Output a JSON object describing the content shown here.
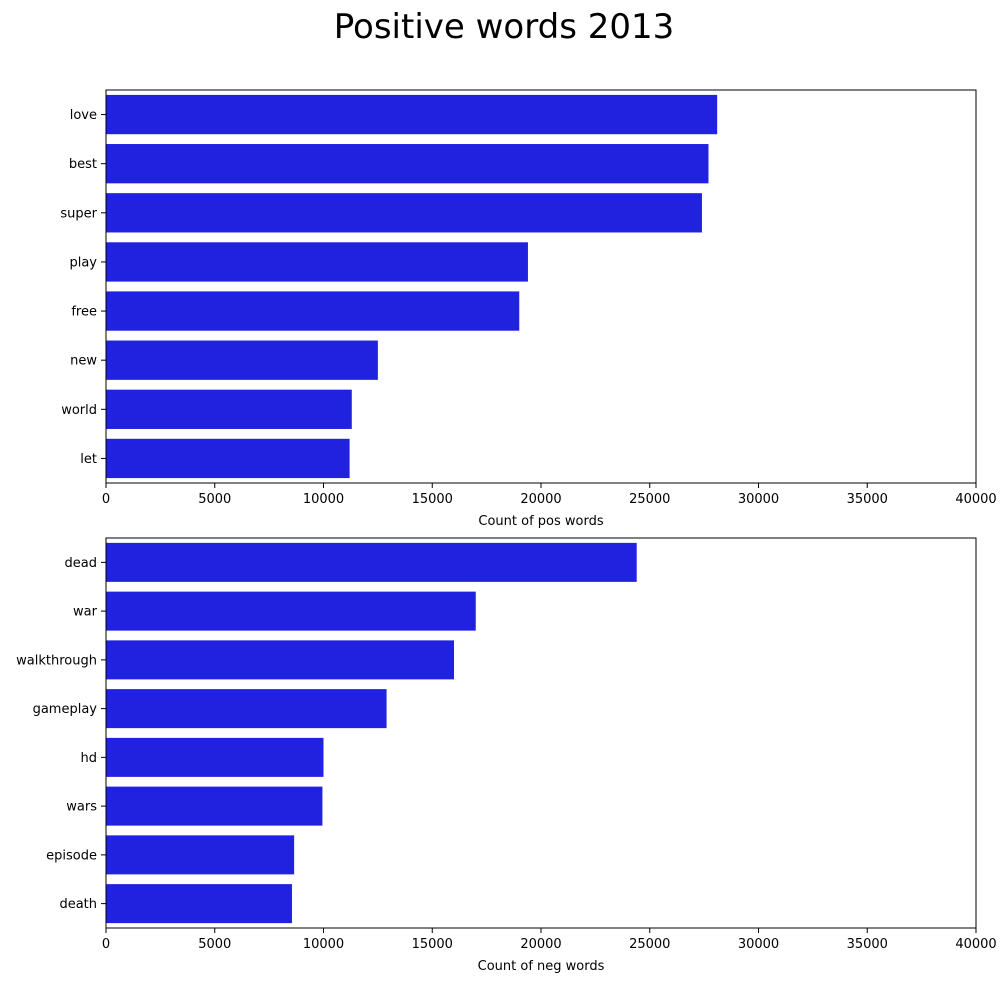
{
  "figure": {
    "title": "Positive words 2013"
  },
  "colors": {
    "bar": "#2121e0",
    "axis": "#000000",
    "background": "#ffffff"
  },
  "chart_data": [
    {
      "type": "bar",
      "orientation": "horizontal",
      "categories": [
        "love",
        "best",
        "super",
        "play",
        "free",
        "new",
        "world",
        "let"
      ],
      "values": [
        28100,
        27700,
        27400,
        19400,
        19000,
        12500,
        11300,
        11200
      ],
      "xlabel": "Count of pos words",
      "ylabel": "",
      "xlim": [
        0,
        40000
      ],
      "xticks": [
        "0",
        "5000",
        "10000",
        "15000",
        "20000",
        "25000",
        "30000",
        "35000",
        "40000"
      ],
      "grid": false
    },
    {
      "type": "bar",
      "orientation": "horizontal",
      "categories": [
        "dead",
        "war",
        "walkthrough",
        "gameplay",
        "hd",
        "wars",
        "episode",
        "death"
      ],
      "values": [
        24400,
        17000,
        16000,
        12900,
        10000,
        9950,
        8650,
        8550
      ],
      "xlabel": "Count of neg words",
      "ylabel": "",
      "xlim": [
        0,
        40000
      ],
      "xticks": [
        "0",
        "5000",
        "10000",
        "15000",
        "20000",
        "25000",
        "30000",
        "35000",
        "40000"
      ],
      "grid": false
    }
  ]
}
